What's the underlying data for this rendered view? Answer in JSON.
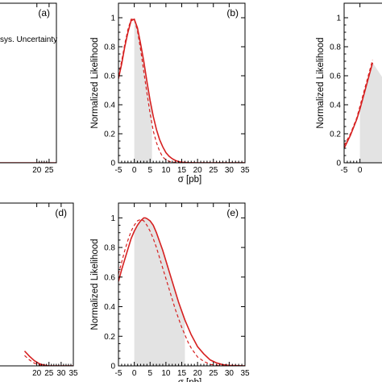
{
  "colors": {
    "curve": "#d62020",
    "shade": "#e3e3e3",
    "axis": "#000000"
  },
  "legend_fragment": "sys. Uncertainty",
  "chart_data": [
    {
      "panel": "(a)",
      "type": "line",
      "xticks": [
        "20",
        "25"
      ],
      "yticks": [],
      "xlabel": "",
      "ylabel": "",
      "xlim": [
        -5,
        28
      ],
      "ylim": [
        0,
        1.1
      ],
      "series": [
        {
          "style": "solid",
          "x": [
            -5,
            28
          ],
          "y": [
            0,
            0
          ]
        }
      ]
    },
    {
      "panel": "(b)",
      "type": "line",
      "xticks": [
        "-5",
        "0",
        "5",
        "10",
        "15",
        "20",
        "25",
        "30",
        "35"
      ],
      "yticks": [
        "0",
        "0.2",
        "0.4",
        "0.6",
        "0.8",
        "1"
      ],
      "xlabel": "σ [pb]",
      "ylabel": "Normalized Likelihood",
      "xlim": [
        -5,
        35
      ],
      "ylim": [
        0,
        1.1
      ],
      "shade_range": [
        0,
        5.6
      ],
      "series": [
        {
          "style": "solid",
          "x": [
            -5,
            -4,
            -3,
            -2,
            -1,
            0,
            1,
            2,
            3,
            4,
            5,
            6,
            7,
            8,
            9,
            10,
            11,
            12,
            13,
            14,
            15,
            17,
            20,
            25,
            35
          ],
          "y": [
            0.58,
            0.68,
            0.8,
            0.9,
            0.98,
            0.99,
            0.93,
            0.82,
            0.7,
            0.56,
            0.43,
            0.32,
            0.23,
            0.16,
            0.11,
            0.07,
            0.045,
            0.028,
            0.016,
            0.008,
            0.004,
            0.001,
            0,
            0,
            0
          ]
        },
        {
          "style": "dashed",
          "x": [
            -5,
            -4,
            -3,
            -2,
            -1,
            0,
            1,
            2,
            3,
            4,
            5,
            6,
            7,
            8,
            9,
            10,
            11,
            12,
            13,
            14,
            15,
            17,
            20,
            25,
            35
          ],
          "y": [
            0.6,
            0.7,
            0.82,
            0.92,
            0.99,
            0.99,
            0.91,
            0.78,
            0.63,
            0.48,
            0.34,
            0.22,
            0.14,
            0.08,
            0.04,
            0.02,
            0.01,
            0.005,
            0.002,
            0.001,
            0,
            0,
            0,
            0,
            0
          ]
        }
      ]
    },
    {
      "panel": "",
      "type": "line",
      "xticks": [
        "-5",
        "0"
      ],
      "yticks": [
        "0",
        "0.2",
        "0.4",
        "0.6",
        "0.8",
        "1"
      ],
      "xlabel": "",
      "ylabel": "Normalized Likelihood",
      "xlim": [
        -5,
        35
      ],
      "ylim": [
        0,
        1.1
      ],
      "shade_range": [
        0,
        25
      ],
      "series": [
        {
          "style": "solid",
          "x": [
            -5,
            -3,
            -1,
            0,
            1,
            2,
            3,
            4
          ],
          "y": [
            0.1,
            0.19,
            0.3,
            0.37,
            0.45,
            0.53,
            0.61,
            0.69
          ]
        },
        {
          "style": "dashed",
          "x": [
            -5,
            -3,
            -1,
            0,
            1,
            2,
            3,
            4
          ],
          "y": [
            0.12,
            0.2,
            0.31,
            0.39,
            0.47,
            0.55,
            0.63,
            0.71
          ]
        }
      ]
    },
    {
      "panel": "(d)",
      "type": "line",
      "xticks": [
        "20",
        "25",
        "30",
        "35"
      ],
      "yticks": [],
      "xlabel": "",
      "ylabel": "",
      "xlim": [
        -5,
        35
      ],
      "ylim": [
        0,
        1.1
      ],
      "series": [
        {
          "style": "solid",
          "x": [
            15,
            17,
            19,
            21,
            23,
            25,
            35
          ],
          "y": [
            0.1,
            0.065,
            0.035,
            0.015,
            0.005,
            0,
            0
          ]
        },
        {
          "style": "dashed",
          "x": [
            15,
            17,
            19,
            21,
            23,
            35
          ],
          "y": [
            0.07,
            0.04,
            0.018,
            0.006,
            0,
            0
          ]
        }
      ]
    },
    {
      "panel": "(e)",
      "type": "line",
      "xticks": [
        "-5",
        "0",
        "5",
        "10",
        "15",
        "20",
        "25",
        "30",
        "35"
      ],
      "yticks": [
        "0",
        "0.2",
        "0.4",
        "0.6",
        "0.8",
        "1"
      ],
      "xlabel": "σ [pb]",
      "ylabel": "Normalized Likelihood",
      "xlim": [
        -5,
        35
      ],
      "ylim": [
        0,
        1.1
      ],
      "shade_range": [
        0,
        16
      ],
      "series": [
        {
          "style": "solid",
          "x": [
            -5,
            -4,
            -3,
            -2,
            -1,
            0,
            1,
            2,
            3,
            3.5,
            4,
            5,
            6,
            7,
            8,
            9,
            10,
            11,
            12,
            13,
            14,
            15,
            16,
            17,
            18,
            19,
            20,
            22,
            24,
            26,
            28,
            30,
            35
          ],
          "y": [
            0.57,
            0.65,
            0.72,
            0.79,
            0.86,
            0.91,
            0.95,
            0.98,
            1.0,
            1.0,
            0.995,
            0.98,
            0.95,
            0.9,
            0.84,
            0.78,
            0.71,
            0.64,
            0.57,
            0.5,
            0.43,
            0.37,
            0.31,
            0.26,
            0.21,
            0.17,
            0.13,
            0.08,
            0.04,
            0.02,
            0.008,
            0.003,
            0
          ]
        },
        {
          "style": "dashed",
          "x": [
            -5,
            -4,
            -3,
            -2,
            -1,
            0,
            1,
            2,
            3,
            4,
            5,
            6,
            7,
            8,
            9,
            10,
            11,
            12,
            13,
            14,
            15,
            16,
            17,
            18,
            19,
            20,
            22,
            24,
            26,
            28,
            35
          ],
          "y": [
            0.62,
            0.7,
            0.78,
            0.85,
            0.91,
            0.95,
            0.98,
            0.99,
            0.98,
            0.95,
            0.91,
            0.86,
            0.8,
            0.73,
            0.66,
            0.59,
            0.52,
            0.45,
            0.38,
            0.32,
            0.26,
            0.21,
            0.16,
            0.12,
            0.09,
            0.06,
            0.03,
            0.01,
            0.004,
            0.001,
            0
          ]
        }
      ]
    }
  ]
}
